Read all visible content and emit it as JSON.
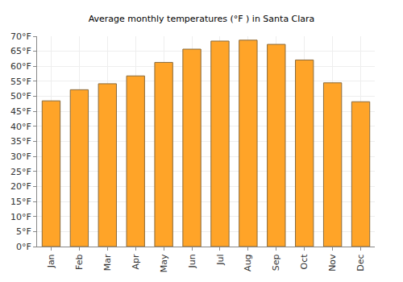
{
  "chart_data": {
    "type": "bar",
    "title": "Average monthly temperatures (°F ) in Santa Clara",
    "categories": [
      "Jan",
      "Feb",
      "Mar",
      "Apr",
      "May",
      "Jun",
      "Jul",
      "Aug",
      "Sep",
      "Oct",
      "Nov",
      "Dec"
    ],
    "values": [
      48.5,
      52.2,
      54.2,
      56.8,
      61.3,
      65.7,
      68.4,
      68.7,
      67.3,
      62.1,
      54.5,
      48.2
    ],
    "color": "#ffa428",
    "ylim": [
      0,
      70
    ],
    "yticks": [
      {
        "value": 0,
        "label": "0°F"
      },
      {
        "value": 5,
        "label": "5°F"
      },
      {
        "value": 10,
        "label": "10°F"
      },
      {
        "value": 15,
        "label": "15°F"
      },
      {
        "value": 20,
        "label": "20°F"
      },
      {
        "value": 25,
        "label": "25°F"
      },
      {
        "value": 30,
        "label": "30°F"
      },
      {
        "value": 35,
        "label": "35°F"
      },
      {
        "value": 40,
        "label": "40°F"
      },
      {
        "value": 45,
        "label": "45°F"
      },
      {
        "value": 50,
        "label": "50°F"
      },
      {
        "value": 55,
        "label": "55°F"
      },
      {
        "value": 60,
        "label": "60°F"
      },
      {
        "value": 65,
        "label": "65°F"
      },
      {
        "value": 70,
        "label": "70°F"
      }
    ],
    "grid": true
  }
}
